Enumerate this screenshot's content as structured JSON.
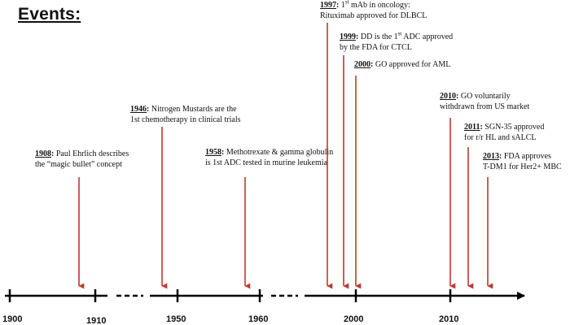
{
  "title": "Events:",
  "colors": {
    "arrow": "#c0392b",
    "axis": "#000000"
  },
  "axis": {
    "ticks": [
      "1900",
      "1910",
      "1950",
      "1960",
      "2000",
      "2010"
    ]
  },
  "events": [
    {
      "year": "1908",
      "sep": ": ",
      "lines": [
        [
          "Paul Ehrlich describes"
        ],
        [
          "the “magic bullet” concept"
        ]
      ]
    },
    {
      "year": "1946",
      "sep": ": ",
      "lines": [
        [
          "Nitrogen Mustards are the"
        ],
        [
          "1st chemotherapy in clinical trials"
        ]
      ]
    },
    {
      "year": "1958",
      "sep": ": ",
      "lines": [
        [
          "Methotrexate & gamma globulin"
        ],
        [
          "is 1st ADC tested in murine leukemia"
        ]
      ]
    },
    {
      "year": "1997",
      "sep": ": ",
      "lines": [
        [
          "1",
          {
            "sup": "st"
          },
          " mAb in oncology:"
        ],
        [
          "Rituximab approved for DLBCL"
        ]
      ]
    },
    {
      "year": "1999",
      "sep": ": ",
      "lines": [
        [
          "DD is the 1",
          {
            "sup": "st"
          },
          " ADC approved"
        ],
        [
          "by the FDA for CTCL"
        ]
      ]
    },
    {
      "year": "2000",
      "sep": ": ",
      "lines": [
        [
          "GO approved for AML"
        ]
      ]
    },
    {
      "year": "2010",
      "sep": ": ",
      "lines": [
        [
          "GO voluntarily"
        ],
        [
          "withdrawn from US market"
        ]
      ]
    },
    {
      "year": "2011",
      "sep": ": ",
      "lines": [
        [
          "SGN-35 approved"
        ],
        [
          "for r/r HL and sALCL"
        ]
      ]
    },
    {
      "year": "2013",
      "sep": ": ",
      "lines": [
        [
          "FDA approves"
        ],
        [
          "T-DM1 for Her2+ MBC"
        ]
      ]
    }
  ]
}
